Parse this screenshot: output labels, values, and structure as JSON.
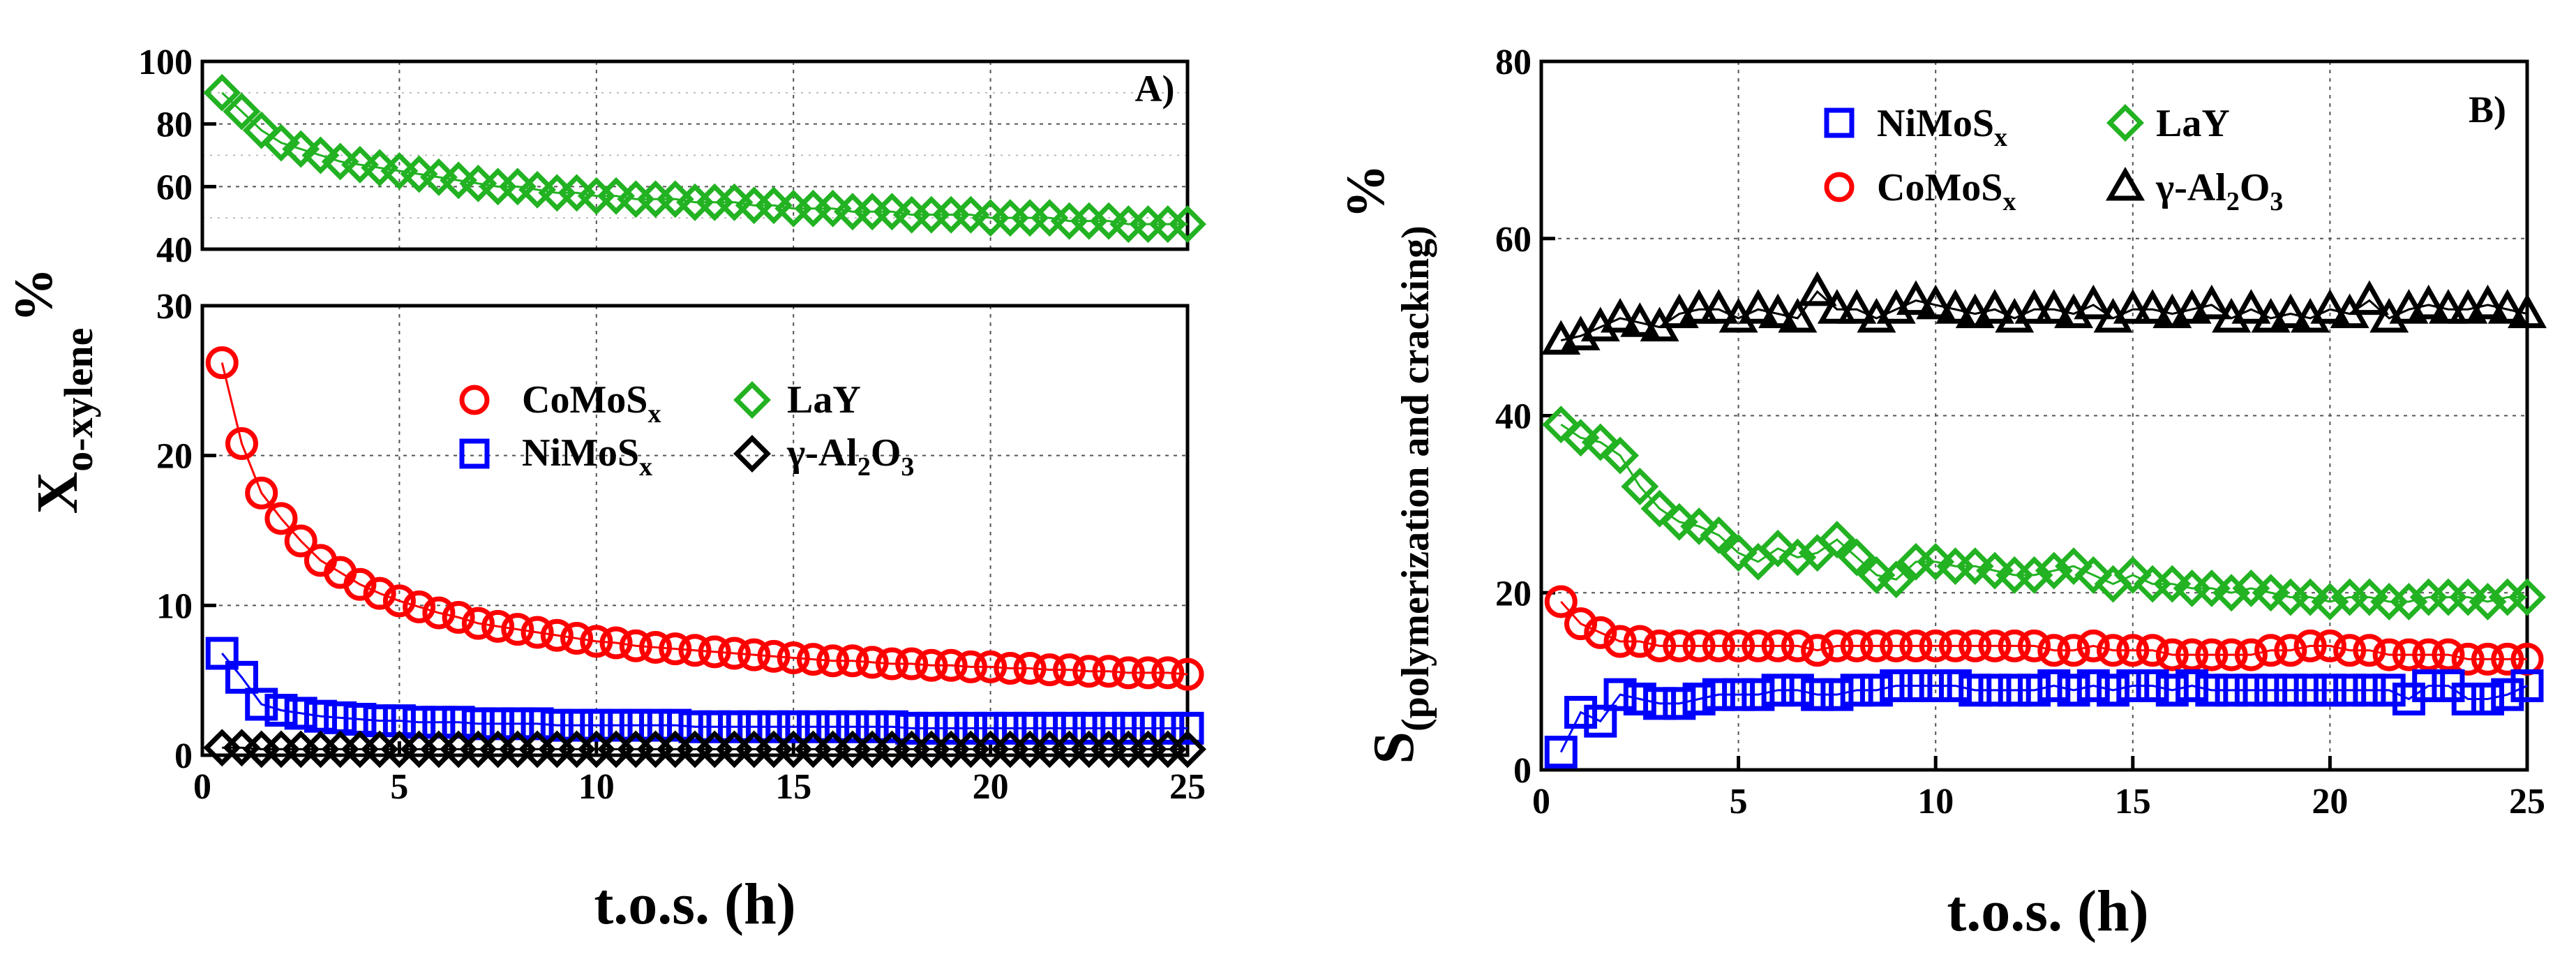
{
  "colors": {
    "CoMoSx": "#ff0000",
    "NiMoSx": "#0000ff",
    "LaY": "#22b222",
    "Al2O3": "#000000"
  },
  "legend_labels": {
    "CoMoSx": "CoMoSx",
    "NiMoSx": "NiMoSx",
    "LaY": "LaY",
    "Al2O3": "γ-Al2O3"
  },
  "chart_data": [
    {
      "type": "scatter",
      "panel_label": "A)",
      "xlabel": "t.o.s. (h)",
      "ylabel": "X o-xylene %",
      "ylabel_parts": {
        "main": "X",
        "sub": "o-xylene",
        "suffix": "%"
      },
      "xlim": [
        0,
        25
      ],
      "x_ticks": [
        "0",
        "5",
        "10",
        "15",
        "20",
        "25"
      ],
      "grid": true,
      "axis_break": true,
      "y_upper": {
        "ylim": [
          40,
          100
        ],
        "ticks": [
          "40",
          "60",
          "80",
          "100"
        ]
      },
      "y_lower": {
        "ylim": [
          0,
          30
        ],
        "ticks": [
          "0",
          "10",
          "20",
          "30"
        ]
      },
      "legend_position": "center-right",
      "series": [
        {
          "name": "CoMoSx",
          "marker": "circle",
          "segment": "lower",
          "x": [
            0.5,
            1,
            1.5,
            2,
            2.5,
            3,
            3.5,
            4,
            4.5,
            5,
            5.5,
            6,
            6.5,
            7,
            7.5,
            8,
            8.5,
            9,
            9.5,
            10,
            10.5,
            11,
            11.5,
            12,
            12.5,
            13,
            13.5,
            14,
            14.5,
            15,
            15.5,
            16,
            16.5,
            17,
            17.5,
            18,
            18.5,
            19,
            19.5,
            20,
            20.5,
            21,
            21.5,
            22,
            22.5,
            23,
            23.5,
            24,
            24.5,
            25
          ],
          "y": [
            26.2,
            20.8,
            17.5,
            15.8,
            14.3,
            13.0,
            12.2,
            11.4,
            10.8,
            10.3,
            9.9,
            9.5,
            9.2,
            8.8,
            8.6,
            8.4,
            8.2,
            8.0,
            7.8,
            7.6,
            7.5,
            7.3,
            7.2,
            7.1,
            7.0,
            6.9,
            6.8,
            6.7,
            6.6,
            6.5,
            6.4,
            6.3,
            6.3,
            6.2,
            6.1,
            6.1,
            6.0,
            6.0,
            5.9,
            5.9,
            5.8,
            5.8,
            5.7,
            5.7,
            5.6,
            5.6,
            5.5,
            5.5,
            5.5,
            5.4
          ]
        },
        {
          "name": "NiMoSx",
          "marker": "square",
          "segment": "lower",
          "x": [
            0.5,
            1,
            1.5,
            2,
            2.5,
            3,
            3.5,
            4,
            4.5,
            5,
            5.5,
            6,
            6.5,
            7,
            7.5,
            8,
            8.5,
            9,
            9.5,
            10,
            10.5,
            11,
            11.5,
            12,
            12.5,
            13,
            13.5,
            14,
            14.5,
            15,
            15.5,
            16,
            16.5,
            17,
            17.5,
            18,
            18.5,
            19,
            19.5,
            20,
            20.5,
            21,
            21.5,
            22,
            22.5,
            23,
            23.5,
            24,
            24.5,
            25
          ],
          "y": [
            6.8,
            5.2,
            3.4,
            3.0,
            2.8,
            2.6,
            2.5,
            2.4,
            2.3,
            2.3,
            2.2,
            2.2,
            2.2,
            2.1,
            2.1,
            2.1,
            2.1,
            2.0,
            2.0,
            2.0,
            2.0,
            2.0,
            2.0,
            2.0,
            1.9,
            1.9,
            1.9,
            1.9,
            1.9,
            1.9,
            1.9,
            1.9,
            1.9,
            1.9,
            1.9,
            1.8,
            1.8,
            1.8,
            1.8,
            1.8,
            1.8,
            1.8,
            1.8,
            1.8,
            1.8,
            1.8,
            1.8,
            1.8,
            1.8,
            1.8
          ]
        },
        {
          "name": "γ-Al2O3",
          "marker": "diamond",
          "segment": "lower",
          "x": [
            0.5,
            1,
            1.5,
            2,
            2.5,
            3,
            3.5,
            4,
            4.5,
            5,
            5.5,
            6,
            6.5,
            7,
            7.5,
            8,
            8.5,
            9,
            9.5,
            10,
            10.5,
            11,
            11.5,
            12,
            12.5,
            13,
            13.5,
            14,
            14.5,
            15,
            15.5,
            16,
            16.5,
            17,
            17.5,
            18,
            18.5,
            19,
            19.5,
            20,
            20.5,
            21,
            21.5,
            22,
            22.5,
            23,
            23.5,
            24,
            24.5,
            25
          ],
          "y": [
            0.5,
            0.5,
            0.4,
            0.4,
            0.4,
            0.4,
            0.4,
            0.4,
            0.4,
            0.4,
            0.4,
            0.4,
            0.4,
            0.4,
            0.4,
            0.4,
            0.4,
            0.4,
            0.4,
            0.4,
            0.4,
            0.4,
            0.4,
            0.4,
            0.4,
            0.4,
            0.4,
            0.4,
            0.4,
            0.4,
            0.4,
            0.4,
            0.4,
            0.4,
            0.4,
            0.4,
            0.4,
            0.4,
            0.4,
            0.4,
            0.4,
            0.4,
            0.4,
            0.4,
            0.4,
            0.4,
            0.4,
            0.4,
            0.4,
            0.4
          ]
        },
        {
          "name": "LaY",
          "marker": "diamond",
          "segment": "upper",
          "x": [
            0.5,
            1,
            1.5,
            2,
            2.5,
            3,
            3.5,
            4,
            4.5,
            5,
            5.5,
            6,
            6.5,
            7,
            7.5,
            8,
            8.5,
            9,
            9.5,
            10,
            10.5,
            11,
            11.5,
            12,
            12.5,
            13,
            13.5,
            14,
            14.5,
            15,
            15.5,
            16,
            16.5,
            17,
            17.5,
            18,
            18.5,
            19,
            19.5,
            20,
            20.5,
            21,
            21.5,
            22,
            22.5,
            23,
            23.5,
            24,
            24.5,
            25
          ],
          "y": [
            90,
            84,
            78,
            74,
            72,
            70,
            68,
            67,
            66,
            65,
            64,
            63,
            62,
            61,
            60,
            60,
            59,
            58,
            58,
            57,
            57,
            56,
            56,
            56,
            55,
            55,
            55,
            54,
            54,
            53,
            53,
            53,
            52,
            52,
            52,
            51,
            51,
            51,
            51,
            50,
            50,
            50,
            50,
            49,
            49,
            49,
            48,
            48,
            48,
            48
          ]
        }
      ]
    },
    {
      "type": "scatter",
      "panel_label": "B)",
      "xlabel": "t.o.s. (h)",
      "ylabel": "S(polymerization and cracking) %",
      "ylabel_parts": {
        "main": "S",
        "sub": "(polymerization and cracking)",
        "suffix": "%"
      },
      "xlim": [
        0,
        25
      ],
      "ylim": [
        0,
        80
      ],
      "x_ticks": [
        "0",
        "5",
        "10",
        "15",
        "20",
        "25"
      ],
      "y_ticks": [
        "0",
        "20",
        "40",
        "60",
        "80"
      ],
      "grid": true,
      "legend_position": "top-center",
      "series": [
        {
          "name": "γ-Al2O3",
          "marker": "triangle",
          "x": [
            0.5,
            1,
            1.5,
            2,
            2.5,
            3,
            3.5,
            4,
            4.5,
            5,
            5.5,
            6,
            6.5,
            7,
            7.5,
            8,
            8.5,
            9,
            9.5,
            10,
            10.5,
            11,
            11.5,
            12,
            12.5,
            13,
            13.5,
            14,
            14.5,
            15,
            15.5,
            16,
            16.5,
            17,
            17.5,
            18,
            18.5,
            19,
            19.5,
            20,
            20.5,
            21,
            21.5,
            22,
            22.5,
            23,
            23.5,
            24,
            24.5,
            25
          ],
          "y": [
            48.5,
            49,
            50,
            51,
            50.5,
            50,
            51.5,
            52,
            52,
            51,
            52,
            51.5,
            51,
            54,
            52,
            52,
            51,
            52,
            53,
            52.5,
            52,
            51.5,
            52,
            51,
            52,
            52,
            51.5,
            52.5,
            51,
            52,
            52,
            51.5,
            52,
            52.5,
            51,
            52,
            51,
            51.5,
            51,
            52,
            51.5,
            53,
            51,
            52,
            52.5,
            52,
            52,
            52.5,
            52,
            51.5
          ]
        },
        {
          "name": "LaY",
          "marker": "diamond",
          "x": [
            0.5,
            1,
            1.5,
            2,
            2.5,
            3,
            3.5,
            4,
            4.5,
            5,
            5.5,
            6,
            6.5,
            7,
            7.5,
            8,
            8.5,
            9,
            9.5,
            10,
            10.5,
            11,
            11.5,
            12,
            12.5,
            13,
            13.5,
            14,
            14.5,
            15,
            15.5,
            16,
            16.5,
            17,
            17.5,
            18,
            18.5,
            19,
            19.5,
            20,
            20.5,
            21,
            21.5,
            22,
            22.5,
            23,
            23.5,
            24,
            24.5,
            25
          ],
          "y": [
            39,
            37.5,
            37,
            35.5,
            32,
            29.5,
            28,
            27.5,
            26.5,
            24.5,
            23.5,
            25,
            24,
            24.5,
            26,
            24,
            22,
            21.5,
            23.5,
            23.5,
            23,
            23,
            22.5,
            22,
            22,
            22.5,
            23,
            22,
            21,
            22,
            21,
            21,
            20.5,
            20.5,
            20,
            20.5,
            20,
            19.5,
            19.5,
            19,
            19.5,
            19.5,
            19,
            19,
            19.5,
            19.5,
            19.5,
            19,
            19.5,
            19.5
          ]
        },
        {
          "name": "CoMoSx",
          "marker": "circle",
          "x": [
            0.5,
            1,
            1.5,
            2,
            2.5,
            3,
            3.5,
            4,
            4.5,
            5,
            5.5,
            6,
            6.5,
            7,
            7.5,
            8,
            8.5,
            9,
            9.5,
            10,
            10.5,
            11,
            11.5,
            12,
            12.5,
            13,
            13.5,
            14,
            14.5,
            15,
            15.5,
            16,
            16.5,
            17,
            17.5,
            18,
            18.5,
            19,
            19.5,
            20,
            20.5,
            21,
            21.5,
            22,
            22.5,
            23,
            23.5,
            24,
            24.5,
            25
          ],
          "y": [
            19,
            16.5,
            15.5,
            14.5,
            14.5,
            14,
            14,
            14,
            14,
            14,
            14,
            14,
            14,
            13.5,
            14,
            14,
            14,
            14,
            14,
            14,
            14,
            14,
            14,
            14,
            14,
            13.5,
            13.5,
            14,
            13.5,
            13.5,
            13.5,
            13,
            13,
            13,
            13,
            13,
            13.5,
            13.5,
            14,
            14,
            13.5,
            13.5,
            13,
            13,
            13,
            13,
            12.5,
            12.5,
            12.5,
            12.5
          ]
        },
        {
          "name": "NiMoSx",
          "marker": "square",
          "x": [
            0.5,
            1,
            1.5,
            2,
            2.5,
            3,
            3.5,
            4,
            4.5,
            5,
            5.5,
            6,
            6.5,
            7,
            7.5,
            8,
            8.5,
            9,
            9.5,
            10,
            10.5,
            11,
            11.5,
            12,
            12.5,
            13,
            13.5,
            14,
            14.5,
            15,
            15.5,
            16,
            16.5,
            17,
            17.5,
            18,
            18.5,
            19,
            19.5,
            20,
            20.5,
            21,
            21.5,
            22,
            22.5,
            23,
            23.5,
            24,
            24.5,
            25
          ],
          "y": [
            2,
            6.5,
            5.5,
            8.5,
            8,
            7.5,
            7.5,
            8,
            8.5,
            8.5,
            8.5,
            9,
            9,
            8.5,
            8.5,
            9,
            9,
            9.5,
            9.5,
            9.5,
            9.5,
            9,
            9,
            9,
            9,
            9.5,
            9,
            9.5,
            9,
            9.5,
            9.5,
            9,
            9.5,
            9,
            9,
            9,
            9,
            9,
            9,
            9,
            9,
            9,
            9,
            8,
            9.5,
            9.5,
            8,
            8,
            8.5,
            9.5
          ]
        }
      ]
    }
  ]
}
